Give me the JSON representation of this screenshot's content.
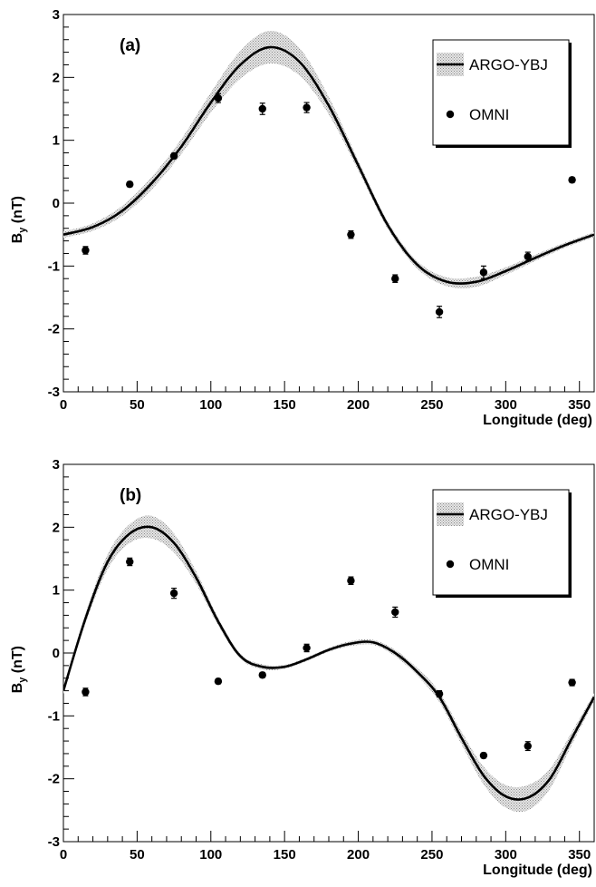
{
  "chart_data": [
    {
      "type": "line",
      "panel_label": "(a)",
      "xlabel": "Longitude (deg)",
      "ylabel": "B",
      "ylabel_sub": "y",
      "ylabel_unit": " (nT)",
      "xlim": [
        0,
        360
      ],
      "ylim": [
        -3,
        3
      ],
      "xticks": [
        0,
        50,
        100,
        150,
        200,
        250,
        300,
        350
      ],
      "yticks": [
        -3,
        -2,
        -1,
        0,
        1,
        2,
        3
      ],
      "grid": false,
      "legend_position": "top-right",
      "series": [
        {
          "name": "ARGO-YBJ",
          "kind": "line-with-band",
          "x": [
            0,
            20,
            40,
            60,
            80,
            100,
            120,
            140,
            160,
            180,
            200,
            220,
            240,
            260,
            280,
            300,
            320,
            340,
            360
          ],
          "y": [
            -0.5,
            -0.38,
            -0.12,
            0.32,
            0.9,
            1.6,
            2.2,
            2.48,
            2.25,
            1.55,
            0.6,
            -0.35,
            -0.98,
            -1.25,
            -1.25,
            -1.08,
            -0.87,
            -0.67,
            -0.5
          ],
          "band_halfwidth": [
            0.05,
            0.06,
            0.08,
            0.1,
            0.12,
            0.16,
            0.22,
            0.26,
            0.22,
            0.14,
            0.08,
            0.06,
            0.06,
            0.07,
            0.08,
            0.06,
            0.05,
            0.04,
            0.04
          ]
        },
        {
          "name": "OMNI",
          "kind": "points-with-errors",
          "x": [
            15,
            45,
            75,
            105,
            135,
            165,
            195,
            225,
            255,
            285,
            315,
            345
          ],
          "y": [
            -0.75,
            0.3,
            0.75,
            1.67,
            1.5,
            1.52,
            -0.5,
            -1.2,
            -1.73,
            -1.1,
            -0.85,
            0.37
          ],
          "err": [
            0.06,
            0.04,
            0.04,
            0.07,
            0.09,
            0.08,
            0.06,
            0.06,
            0.09,
            0.1,
            0.07,
            0.04
          ]
        }
      ]
    },
    {
      "type": "line",
      "panel_label": "(b)",
      "xlabel": "Longitude (deg)",
      "ylabel": "B",
      "ylabel_sub": "y",
      "ylabel_unit": " (nT)",
      "xlim": [
        0,
        360
      ],
      "ylim": [
        -3,
        3
      ],
      "xticks": [
        0,
        50,
        100,
        150,
        200,
        250,
        300,
        350
      ],
      "yticks": [
        -3,
        -2,
        -1,
        0,
        1,
        2,
        3
      ],
      "grid": false,
      "legend_position": "top-right",
      "series": [
        {
          "name": "ARGO-YBJ",
          "kind": "line-with-band",
          "x": [
            0,
            15,
            30,
            45,
            60,
            75,
            90,
            105,
            120,
            135,
            150,
            165,
            180,
            195,
            210,
            225,
            240,
            255,
            270,
            285,
            300,
            315,
            330,
            345,
            360
          ],
          "y": [
            -0.6,
            0.55,
            1.45,
            1.9,
            2.0,
            1.75,
            1.2,
            0.5,
            -0.05,
            -0.22,
            -0.22,
            -0.1,
            0.05,
            0.15,
            0.17,
            0.0,
            -0.3,
            -0.7,
            -1.35,
            -1.95,
            -2.28,
            -2.3,
            -2.0,
            -1.35,
            -0.7
          ],
          "band_halfwidth": [
            0.05,
            0.08,
            0.12,
            0.15,
            0.18,
            0.15,
            0.1,
            0.06,
            0.04,
            0.04,
            0.03,
            0.03,
            0.03,
            0.04,
            0.04,
            0.05,
            0.06,
            0.08,
            0.1,
            0.14,
            0.18,
            0.2,
            0.16,
            0.1,
            0.06
          ]
        },
        {
          "name": "OMNI",
          "kind": "points-with-errors",
          "x": [
            15,
            45,
            75,
            105,
            135,
            165,
            195,
            225,
            255,
            285,
            315,
            345
          ],
          "y": [
            -0.62,
            1.45,
            0.95,
            -0.45,
            -0.35,
            0.08,
            1.15,
            0.65,
            -0.65,
            -1.63,
            -1.48,
            -0.47
          ],
          "err": [
            0.06,
            0.06,
            0.08,
            0.04,
            0.04,
            0.06,
            0.06,
            0.08,
            0.05,
            0.04,
            0.07,
            0.05
          ]
        }
      ]
    }
  ]
}
